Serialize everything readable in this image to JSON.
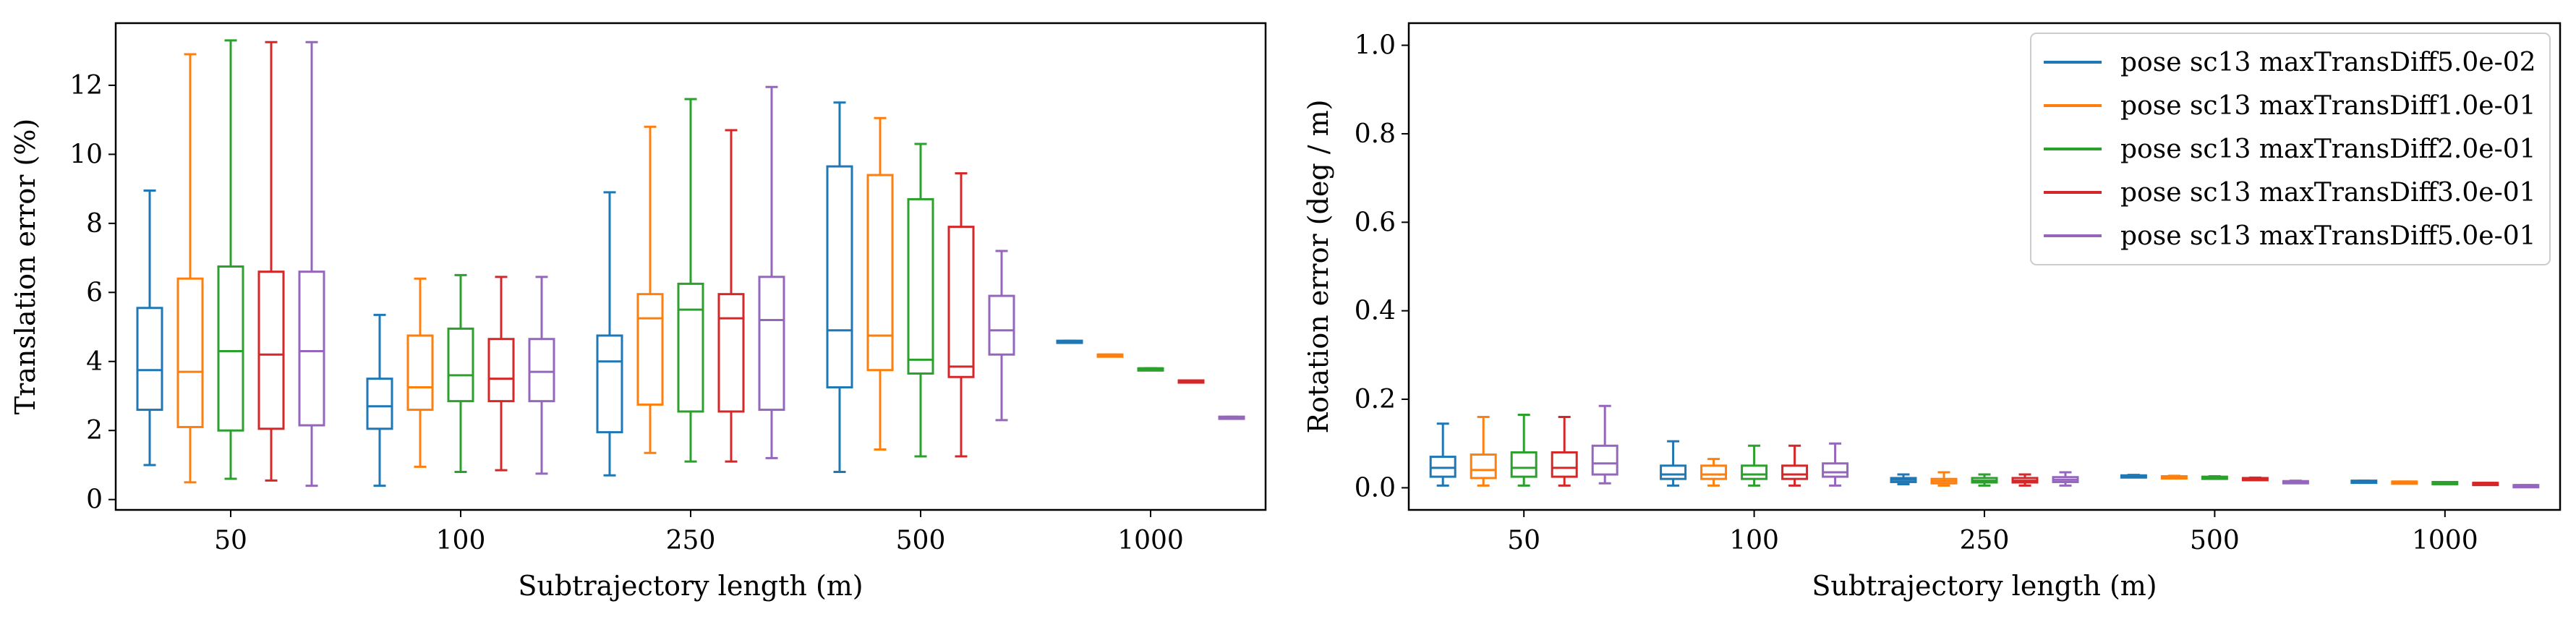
{
  "chart_data": [
    {
      "type": "box",
      "xlabel": "Subtrajectory length (m)",
      "ylabel": "Translation error (%)",
      "ylim": [
        -0.3,
        13.8
      ],
      "yticks": [
        0,
        2,
        4,
        6,
        8,
        10,
        12
      ],
      "categories": [
        "50",
        "100",
        "250",
        "500",
        "1000"
      ],
      "series": [
        {
          "name": "pose sc13 maxTransDiff5.0e-02",
          "color": "#1f77b4",
          "values": [
            [
              1.0,
              2.6,
              3.75,
              5.55,
              8.95
            ],
            [
              0.4,
              2.05,
              2.7,
              3.5,
              5.35
            ],
            [
              0.7,
              1.95,
              4.0,
              4.75,
              8.9
            ],
            [
              0.8,
              3.25,
              4.9,
              9.65,
              11.5
            ],
            [
              4.55,
              4.55,
              4.55,
              4.6,
              4.6
            ]
          ]
        },
        {
          "name": "pose sc13 maxTransDiff1.0e-01",
          "color": "#ff7f0e",
          "values": [
            [
              0.5,
              2.1,
              3.7,
              6.4,
              12.9
            ],
            [
              0.95,
              2.6,
              3.25,
              4.75,
              6.4
            ],
            [
              1.35,
              2.75,
              5.25,
              5.95,
              10.8
            ],
            [
              1.45,
              3.75,
              4.75,
              9.4,
              11.05
            ],
            [
              4.15,
              4.15,
              4.2,
              4.2,
              4.2
            ]
          ]
        },
        {
          "name": "pose sc13 maxTransDiff2.0e-01",
          "color": "#2ca02c",
          "values": [
            [
              0.6,
              2.0,
              4.3,
              6.75,
              13.3
            ],
            [
              0.8,
              2.85,
              3.6,
              4.95,
              6.5
            ],
            [
              1.1,
              2.55,
              5.5,
              6.25,
              11.6
            ],
            [
              1.25,
              3.65,
              4.05,
              8.7,
              10.3
            ],
            [
              3.8,
              3.8,
              3.8,
              3.8,
              3.8
            ]
          ]
        },
        {
          "name": "pose sc13 maxTransDiff3.0e-01",
          "color": "#d62728",
          "values": [
            [
              0.55,
              2.05,
              4.2,
              6.6,
              13.25
            ],
            [
              0.85,
              2.85,
              3.5,
              4.65,
              6.45
            ],
            [
              1.1,
              2.55,
              5.25,
              5.95,
              10.7
            ],
            [
              1.25,
              3.55,
              3.85,
              7.9,
              9.45
            ],
            [
              3.45,
              3.45,
              3.45,
              3.45,
              3.45
            ]
          ]
        },
        {
          "name": "pose sc13 maxTransDiff5.0e-01",
          "color": "#9467bd",
          "values": [
            [
              0.4,
              2.15,
              4.3,
              6.6,
              13.25
            ],
            [
              0.75,
              2.85,
              3.7,
              4.65,
              6.45
            ],
            [
              1.2,
              2.6,
              5.2,
              6.45,
              11.95
            ],
            [
              2.3,
              4.2,
              4.9,
              5.9,
              7.2
            ],
            [
              2.35,
              2.35,
              2.35,
              2.4,
              2.4
            ]
          ]
        }
      ]
    },
    {
      "type": "box",
      "xlabel": "Subtrajectory length (m)",
      "ylabel": "Rotation error (deg / m)",
      "ylim": [
        -0.05,
        1.05
      ],
      "yticks": [
        "0.0",
        "0.2",
        "0.4",
        "0.6",
        "0.8",
        "1.0"
      ],
      "categories": [
        "50",
        "100",
        "250",
        "500",
        "1000"
      ],
      "legend": {
        "placement": "top-right"
      },
      "series": [
        {
          "name": "pose sc13 maxTransDiff5.0e-02",
          "color": "#1f77b4",
          "values": [
            [
              0.005,
              0.025,
              0.045,
              0.07,
              0.145
            ],
            [
              0.005,
              0.02,
              0.03,
              0.05,
              0.105
            ],
            [
              0.008,
              0.013,
              0.018,
              0.022,
              0.03
            ],
            [
              0.025,
              0.026,
              0.027,
              0.028,
              0.029
            ],
            [
              0.014,
              0.015,
              0.015,
              0.016,
              0.016
            ]
          ]
        },
        {
          "name": "pose sc13 maxTransDiff1.0e-01",
          "color": "#ff7f0e",
          "values": [
            [
              0.005,
              0.022,
              0.04,
              0.075,
              0.16
            ],
            [
              0.005,
              0.02,
              0.03,
              0.05,
              0.065
            ],
            [
              0.005,
              0.01,
              0.015,
              0.02,
              0.035
            ],
            [
              0.023,
              0.024,
              0.025,
              0.026,
              0.027
            ],
            [
              0.013,
              0.013,
              0.014,
              0.014,
              0.014
            ]
          ]
        },
        {
          "name": "pose sc13 maxTransDiff2.0e-01",
          "color": "#2ca02c",
          "values": [
            [
              0.005,
              0.025,
              0.045,
              0.08,
              0.165
            ],
            [
              0.005,
              0.02,
              0.03,
              0.05,
              0.095
            ],
            [
              0.005,
              0.012,
              0.016,
              0.022,
              0.03
            ],
            [
              0.022,
              0.023,
              0.024,
              0.025,
              0.026
            ],
            [
              0.012,
              0.012,
              0.013,
              0.013,
              0.013
            ]
          ]
        },
        {
          "name": "pose sc13 maxTransDiff3.0e-01",
          "color": "#d62728",
          "values": [
            [
              0.005,
              0.025,
              0.045,
              0.08,
              0.16
            ],
            [
              0.005,
              0.02,
              0.03,
              0.05,
              0.095
            ],
            [
              0.005,
              0.012,
              0.016,
              0.022,
              0.03
            ],
            [
              0.019,
              0.02,
              0.021,
              0.022,
              0.023
            ],
            [
              0.01,
              0.01,
              0.011,
              0.011,
              0.011
            ]
          ]
        },
        {
          "name": "pose sc13 maxTransDiff5.0e-01",
          "color": "#9467bd",
          "values": [
            [
              0.01,
              0.03,
              0.055,
              0.095,
              0.185
            ],
            [
              0.005,
              0.025,
              0.035,
              0.055,
              0.1
            ],
            [
              0.005,
              0.013,
              0.018,
              0.024,
              0.035
            ],
            [
              0.012,
              0.013,
              0.014,
              0.015,
              0.016
            ],
            [
              0.005,
              0.005,
              0.006,
              0.006,
              0.006
            ]
          ]
        }
      ]
    }
  ]
}
